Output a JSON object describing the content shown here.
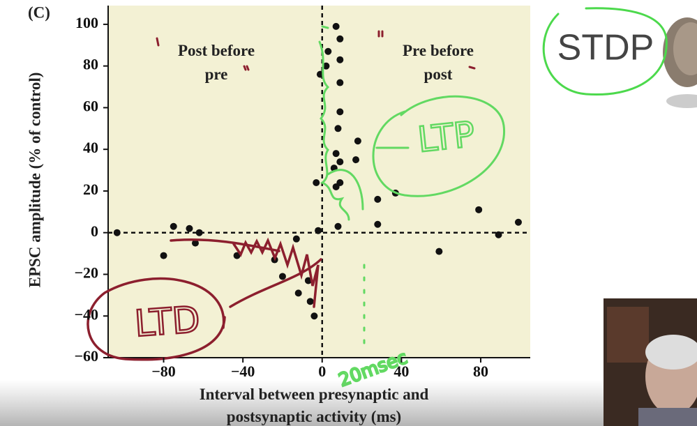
{
  "chart_data": {
    "type": "scatter",
    "panel_label": "(C)",
    "xlabel": "Interval between presynaptic and postsynaptic activity (ms)",
    "ylabel": "EPSC amplitude (% of control)",
    "region_labels": [
      "Post before pre",
      "Pre before post"
    ],
    "slide_title": "STDP",
    "handwritten": [
      "LTD",
      "LTP",
      "20msec"
    ],
    "color": "#111111",
    "x": [
      -103.5,
      -80,
      -75,
      -67,
      -64,
      -62,
      -43,
      -24,
      -13,
      -20,
      -12,
      -7,
      -6,
      -4,
      -2,
      -3,
      -1,
      2,
      3,
      7,
      9,
      9,
      9,
      9,
      8,
      7,
      9,
      6,
      9,
      7,
      18,
      17,
      28,
      28,
      37,
      8,
      59,
      79,
      89,
      99
    ],
    "values": [
      0,
      -11,
      3,
      2,
      -5,
      0,
      -11,
      -13,
      -3,
      -21,
      -29,
      -23,
      -33,
      -40,
      1,
      24,
      76,
      80,
      87,
      99,
      93,
      83,
      72,
      58,
      50,
      38,
      34,
      31,
      24,
      22,
      44,
      35,
      16,
      4,
      19,
      3,
      -9,
      11,
      -1,
      5
    ],
    "xlim": [
      -108,
      105
    ],
    "ylim": [
      -60,
      109
    ],
    "xticks": [
      {
        "value": -80,
        "label": "−80"
      },
      {
        "value": -40,
        "label": "−40"
      },
      0,
      40,
      80
    ],
    "yticks": [
      {
        "value": -60,
        "label": "−60"
      },
      {
        "value": -40,
        "label": "−40"
      },
      {
        "value": -20,
        "label": "−20"
      },
      0,
      20,
      40,
      60,
      80,
      100
    ],
    "zero_lines": true
  }
}
